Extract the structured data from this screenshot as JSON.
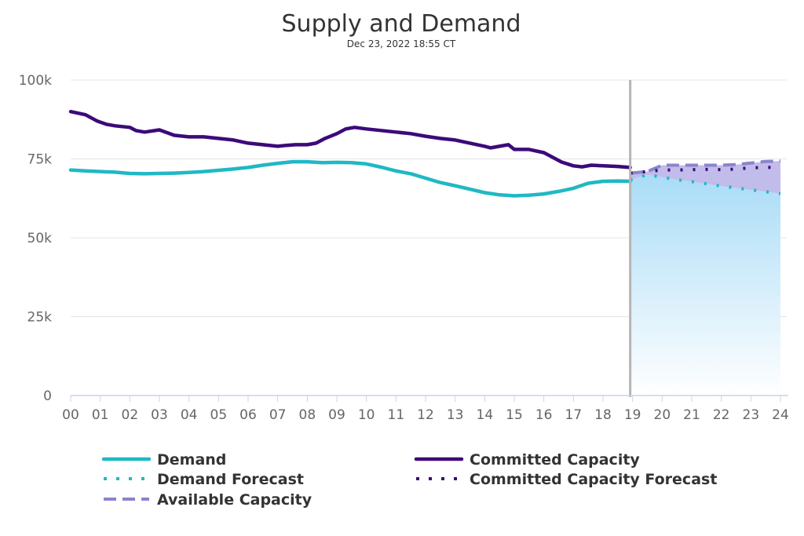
{
  "chart_data": {
    "type": "line",
    "title": "Supply and Demand",
    "subtitle": "Dec 23, 2022 18:55 CT",
    "xlabel": "",
    "ylabel": "",
    "x_ticks": [
      "00",
      "01",
      "02",
      "03",
      "04",
      "05",
      "06",
      "07",
      "08",
      "09",
      "10",
      "11",
      "12",
      "13",
      "14",
      "15",
      "16",
      "17",
      "18",
      "19",
      "20",
      "21",
      "22",
      "23",
      "24"
    ],
    "xlim": [
      0,
      24
    ],
    "y_ticks": [
      "0",
      "25k",
      "50k",
      "75k",
      "100k"
    ],
    "ylim": [
      0,
      100000
    ],
    "grid": true,
    "legend_position": "bottom",
    "current_time_marker_hour": 18.92,
    "series": [
      {
        "name": "Demand",
        "style": "solid",
        "color": "#20b8c4",
        "x": [
          0,
          0.5,
          1,
          1.5,
          2,
          2.5,
          3,
          3.5,
          4,
          4.5,
          5,
          5.5,
          6,
          6.5,
          7,
          7.5,
          8,
          8.5,
          9,
          9.5,
          10,
          10.5,
          11,
          11.5,
          12,
          12.5,
          13,
          13.5,
          14,
          14.5,
          15,
          15.5,
          16,
          16.5,
          17,
          17.5,
          18,
          18.5,
          18.92
        ],
        "y": [
          71500,
          71200,
          71000,
          70800,
          70400,
          70300,
          70400,
          70500,
          70700,
          71000,
          71400,
          71800,
          72300,
          73000,
          73600,
          74100,
          74100,
          73800,
          73900,
          73800,
          73400,
          72400,
          71200,
          70300,
          68900,
          67500,
          66500,
          65400,
          64300,
          63600,
          63300,
          63500,
          63900,
          64700,
          65700,
          67300,
          67900,
          68000,
          67900
        ]
      },
      {
        "name": "Committed Capacity",
        "style": "solid",
        "color": "#3c0a7a",
        "x": [
          0,
          0.5,
          0.9,
          1.2,
          1.5,
          2,
          2.2,
          2.5,
          3,
          3.5,
          4,
          4.5,
          5,
          5.5,
          6,
          6.5,
          7,
          7.3,
          7.6,
          8,
          8.3,
          8.6,
          9,
          9.3,
          9.6,
          10,
          10.5,
          11,
          11.5,
          12,
          12.5,
          13,
          13.5,
          14,
          14.2,
          14.5,
          14.8,
          15,
          15.5,
          16,
          16.3,
          16.6,
          17,
          17.3,
          17.6,
          18,
          18.5,
          18.92
        ],
        "y": [
          90000,
          89000,
          87000,
          86000,
          85500,
          85000,
          84000,
          83500,
          84200,
          82500,
          82000,
          82000,
          81500,
          81000,
          80000,
          79500,
          79000,
          79300,
          79500,
          79500,
          80000,
          81500,
          83000,
          84500,
          85000,
          84500,
          84000,
          83500,
          83000,
          82200,
          81500,
          81000,
          80000,
          79000,
          78500,
          79000,
          79500,
          78000,
          78000,
          77000,
          75500,
          74000,
          72800,
          72500,
          73000,
          72800,
          72600,
          72300
        ]
      },
      {
        "name": "Demand Forecast",
        "style": "dotted",
        "color": "#20b8c4",
        "x": [
          18.92,
          19.5,
          20,
          20.5,
          21,
          21.5,
          22,
          22.5,
          23,
          23.5,
          24
        ],
        "y": [
          68300,
          70000,
          69200,
          68400,
          67800,
          67100,
          66400,
          65800,
          65200,
          64600,
          64000
        ]
      },
      {
        "name": "Committed Capacity Forecast",
        "style": "dotted",
        "color": "#3c0a7a",
        "x": [
          18.92,
          19.5,
          20,
          20.5,
          21,
          21.5,
          22,
          22.5,
          23,
          23.5,
          24
        ],
        "y": [
          70500,
          71000,
          71500,
          71500,
          71600,
          71700,
          71600,
          71800,
          72200,
          72300,
          72400
        ]
      },
      {
        "name": "Available Capacity",
        "style": "dashed",
        "color": "#8a84cc",
        "x": [
          18.92,
          19.5,
          20,
          20.5,
          21,
          21.5,
          22,
          22.5,
          23,
          23.5,
          24
        ],
        "y": [
          70500,
          71000,
          73000,
          73000,
          73000,
          73000,
          73000,
          73200,
          73700,
          74200,
          74300
        ]
      }
    ],
    "legend": [
      {
        "label": "Demand",
        "style": "solid",
        "color": "#20b8c4",
        "column": 0
      },
      {
        "label": "Committed Capacity",
        "style": "solid",
        "color": "#3c0a7a",
        "column": 1
      },
      {
        "label": "Demand Forecast",
        "style": "dotted",
        "color": "#20b8c4",
        "column": 0
      },
      {
        "label": "Committed Capacity Forecast",
        "style": "dotted",
        "color": "#3c0a7a",
        "column": 1
      },
      {
        "label": "Available Capacity",
        "style": "dashed",
        "color": "#8a84cc",
        "column": 0
      }
    ]
  }
}
